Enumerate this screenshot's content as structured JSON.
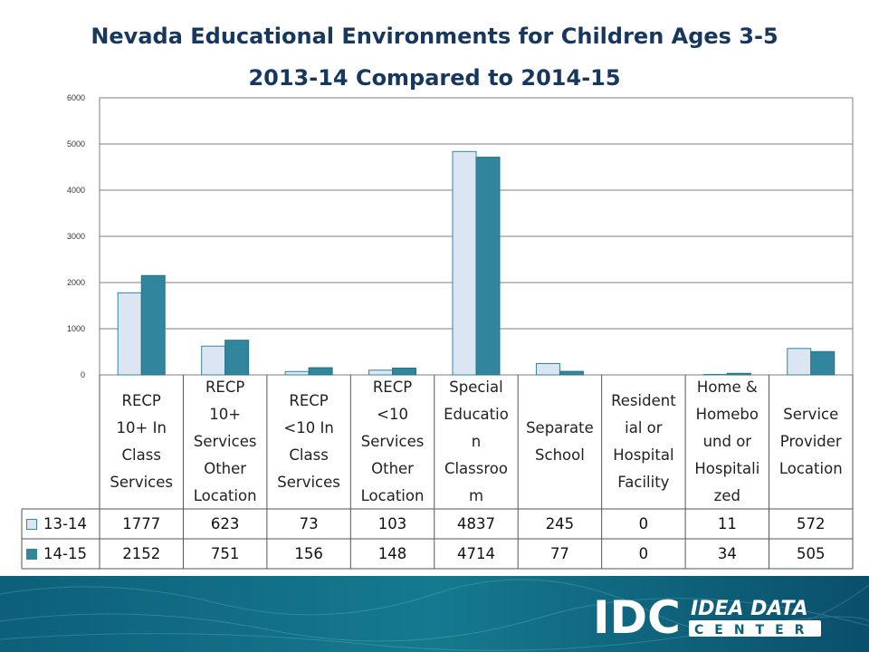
{
  "title": "Nevada Educational Environments for Children Ages 3-5",
  "subtitle": "2013-14 Compared to 2014-15",
  "chart_data": {
    "type": "bar",
    "title": "Nevada Educational Environments for Children Ages 3-5",
    "subtitle": "2013-14 Compared to 2014-15",
    "categories": [
      "RECP 10+ In Class Services",
      "RECP 10+ Services Other Location",
      "RECP <10 In Class Services",
      "RECP <10 Services Other Location",
      "Special Education Classroom",
      "Separate School",
      "Residential or Hospital Facility",
      "Home & Homebound or Hospitalized",
      "Service Provider Location"
    ],
    "category_labels_wrapped": [
      [
        "RECP",
        "10+ In",
        "Class",
        "Services"
      ],
      [
        "RECP",
        "10+",
        "Services",
        "Other",
        "Location"
      ],
      [
        "RECP",
        "<10 In",
        "Class",
        "Services"
      ],
      [
        "RECP",
        "<10",
        "Services",
        "Other",
        "Location"
      ],
      [
        "Special",
        "Educatio",
        "n",
        "Classroo",
        "m"
      ],
      [
        "Separate",
        "School"
      ],
      [
        "Resident",
        "ial or",
        "Hospital",
        "Facility"
      ],
      [
        "Home &",
        "Homebo",
        "und or",
        "Hospitali",
        "zed"
      ],
      [
        "Service",
        "Provider",
        "Location"
      ]
    ],
    "series": [
      {
        "name": "13-14",
        "color": "#dce6f2",
        "values": [
          1777,
          623,
          73,
          103,
          4837,
          245,
          0,
          11,
          572
        ]
      },
      {
        "name": "14-15",
        "color": "#31859c",
        "values": [
          2152,
          751,
          156,
          148,
          4714,
          77,
          0,
          34,
          505
        ]
      }
    ],
    "y_ticks": [
      "0",
      "1000",
      "2000",
      "3000",
      "4000",
      "5000",
      "6000"
    ],
    "ylim": [
      0,
      6000
    ],
    "grid": true,
    "legend": "data-table"
  },
  "branding": {
    "logo_mark": "IDC",
    "logo_line1": "IDEA DATA",
    "logo_line2": "CENTER",
    "colors": {
      "title": "#17375e",
      "footer": "#0b5f77",
      "logo": "#ffffff"
    }
  }
}
